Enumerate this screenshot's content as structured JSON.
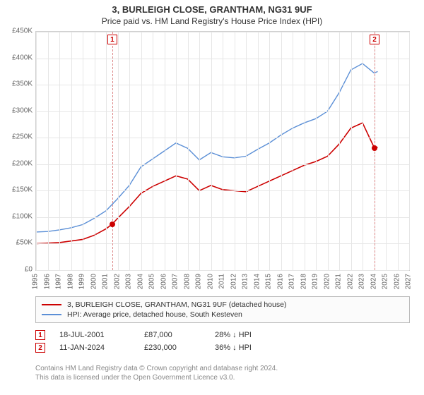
{
  "title": "3, BURLEIGH CLOSE, GRANTHAM, NG31 9UF",
  "subtitle": "Price paid vs. HM Land Registry's House Price Index (HPI)",
  "chart": {
    "type": "line",
    "background_color": "#ffffff",
    "grid_color": "#e6e6e6",
    "axis_color": "#cfcfcf",
    "label_color": "#666666",
    "label_fontsize": 10,
    "x": {
      "min": 1995,
      "max": 2027,
      "ticks": [
        1995,
        1996,
        1997,
        1998,
        1999,
        2000,
        2001,
        2002,
        2003,
        2004,
        2005,
        2006,
        2007,
        2008,
        2009,
        2010,
        2011,
        2012,
        2013,
        2014,
        2015,
        2016,
        2017,
        2018,
        2019,
        2020,
        2021,
        2022,
        2023,
        2024,
        2025,
        2026,
        2027
      ]
    },
    "y": {
      "min": 0,
      "max": 450000,
      "step": 50000,
      "prefix": "£",
      "format": "K",
      "ticks": [
        0,
        50000,
        100000,
        150000,
        200000,
        250000,
        300000,
        350000,
        400000,
        450000
      ]
    },
    "series": [
      {
        "name": "3, BURLEIGH CLOSE, GRANTHAM, NG31 9UF (detached house)",
        "color": "#cc0000",
        "line_width": 1.6,
        "data": [
          [
            1995,
            50000
          ],
          [
            1996,
            51000
          ],
          [
            1997,
            52000
          ],
          [
            1998,
            55000
          ],
          [
            1999,
            58000
          ],
          [
            2000,
            66000
          ],
          [
            2001,
            78000
          ],
          [
            2001.54,
            87000
          ],
          [
            2002,
            98000
          ],
          [
            2003,
            120000
          ],
          [
            2004,
            145000
          ],
          [
            2005,
            158000
          ],
          [
            2006,
            168000
          ],
          [
            2007,
            178000
          ],
          [
            2008,
            172000
          ],
          [
            2009,
            150000
          ],
          [
            2010,
            160000
          ],
          [
            2011,
            152000
          ],
          [
            2012,
            150000
          ],
          [
            2013,
            148000
          ],
          [
            2014,
            158000
          ],
          [
            2015,
            168000
          ],
          [
            2016,
            178000
          ],
          [
            2017,
            188000
          ],
          [
            2018,
            198000
          ],
          [
            2019,
            205000
          ],
          [
            2020,
            215000
          ],
          [
            2021,
            238000
          ],
          [
            2022,
            268000
          ],
          [
            2023,
            278000
          ],
          [
            2024.03,
            230000
          ],
          [
            2024.3,
            232000
          ]
        ]
      },
      {
        "name": "HPI: Average price, detached house, South Kesteven",
        "color": "#5b8fd6",
        "line_width": 1.4,
        "data": [
          [
            1995,
            72000
          ],
          [
            1996,
            73000
          ],
          [
            1997,
            76000
          ],
          [
            1998,
            80000
          ],
          [
            1999,
            86000
          ],
          [
            2000,
            98000
          ],
          [
            2001,
            112000
          ],
          [
            2002,
            135000
          ],
          [
            2003,
            160000
          ],
          [
            2004,
            195000
          ],
          [
            2005,
            210000
          ],
          [
            2006,
            225000
          ],
          [
            2007,
            240000
          ],
          [
            2008,
            230000
          ],
          [
            2009,
            208000
          ],
          [
            2010,
            222000
          ],
          [
            2011,
            214000
          ],
          [
            2012,
            212000
          ],
          [
            2013,
            215000
          ],
          [
            2014,
            228000
          ],
          [
            2015,
            240000
          ],
          [
            2016,
            255000
          ],
          [
            2017,
            268000
          ],
          [
            2018,
            278000
          ],
          [
            2019,
            286000
          ],
          [
            2020,
            300000
          ],
          [
            2021,
            335000
          ],
          [
            2022,
            378000
          ],
          [
            2023,
            390000
          ],
          [
            2024,
            372000
          ],
          [
            2024.3,
            375000
          ]
        ]
      }
    ],
    "markers": [
      {
        "n": "1",
        "x": 2001.54,
        "y": 87000,
        "color": "#cc0000"
      },
      {
        "n": "2",
        "x": 2024.03,
        "y": 230000,
        "color": "#cc0000"
      }
    ]
  },
  "trades": [
    {
      "n": "1",
      "date": "18-JUL-2001",
      "price": "£87,000",
      "rel": "28% ↓ HPI"
    },
    {
      "n": "2",
      "date": "11-JAN-2024",
      "price": "£230,000",
      "rel": "36% ↓ HPI"
    }
  ],
  "footer_lines": [
    "Contains HM Land Registry data © Crown copyright and database right 2024.",
    "This data is licensed under the Open Government Licence v3.0."
  ]
}
